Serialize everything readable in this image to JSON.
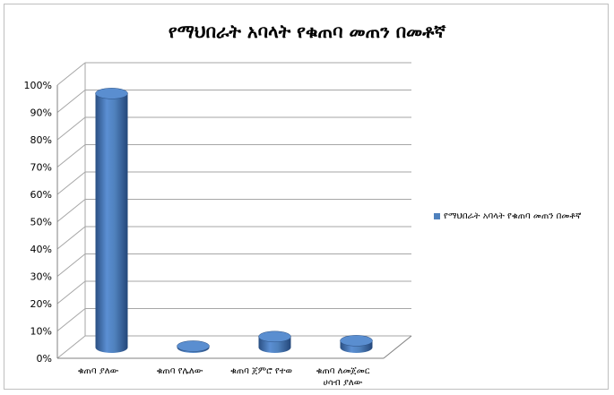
{
  "colors": {
    "bar": "#4f81bd",
    "bar_dark": "#2a4f82",
    "bar_top": "#5a8ed0",
    "grid": "#a6a6a6"
  },
  "chart_data": {
    "type": "bar",
    "title": "የማህበራት አባላት የቁጠባ መጠን በመቶኛ",
    "categories": [
      "ቁጠባ ያለው",
      "ቁጠባ የሌለው",
      "ቁጠባ ጀምሮ የተወ",
      [
        "ቁጠባ ለመጀመር",
        "ሀሳብ ያለው"
      ]
    ],
    "series": [
      {
        "name": "የማህበራት አባላት የቁጠባ መጠን በመቶኛ",
        "values": [
          93,
          0.5,
          4,
          2.5
        ]
      }
    ],
    "yticks": [
      "0%",
      "10%",
      "20%",
      "30%",
      "40%",
      "50%",
      "60%",
      "70%",
      "80%",
      "90%",
      "100%"
    ],
    "ylim": [
      0,
      100
    ],
    "grid": true,
    "legend": "right"
  }
}
